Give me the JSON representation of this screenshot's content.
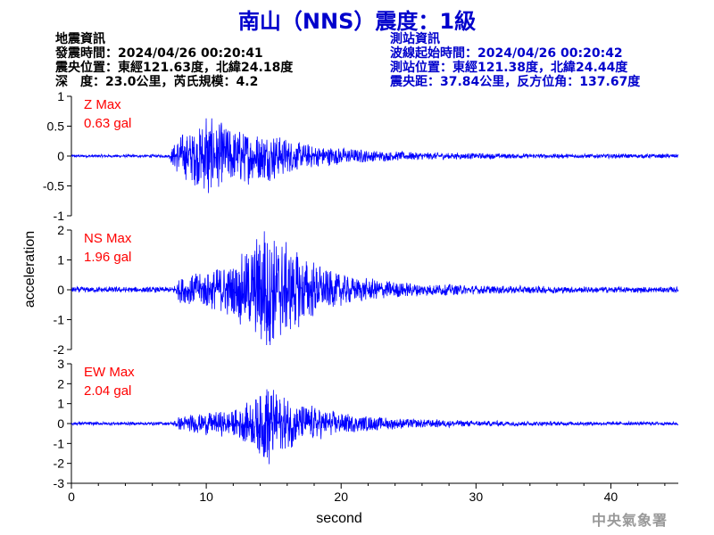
{
  "header": {
    "title": "南山（NNS）震度：1級"
  },
  "event_info": {
    "heading": "地震資訊",
    "origin_time": "發震時間：2024/04/26 00:20:41",
    "epicenter": "震央位置：東經121.63度，北緯24.18度",
    "depth_magnitude": "深　度：23.0公里，芮氏規模：4.2"
  },
  "station_info": {
    "heading": "測站資訊",
    "wave_start": "波線起始時間：2024/04/26 00:20:42",
    "location": "測站位置：東經121.38度，北緯24.44度",
    "distance_azimuth": "震央距：37.84公里，反方位角：137.67度"
  },
  "footer": {
    "agency": "中央氣象署"
  },
  "colors": {
    "trace": "#0000ff",
    "title": "#0000cc",
    "max_label": "#ff0000"
  },
  "chart_data": {
    "type": "line",
    "xlabel": "second",
    "ylabel": "acceleration",
    "x_range": [
      0,
      45
    ],
    "x_ticks": [
      0,
      10,
      20,
      30,
      40
    ],
    "grid": false,
    "panels": [
      {
        "name": "Z",
        "max_label": "Z Max",
        "max_value": "0.63 gal",
        "ylim": [
          -1,
          1
        ],
        "y_ticks": [
          -1,
          -0.5,
          0,
          0.5,
          1
        ],
        "y_tick_labels": [
          "-1",
          "-0.5",
          "0",
          "0.5",
          "1"
        ],
        "peak_pos": 0.63,
        "peak_neg": -0.62,
        "noise": 0.018,
        "envelope": [
          [
            0,
            0.02
          ],
          [
            7.2,
            0.02
          ],
          [
            7.8,
            0.25
          ],
          [
            9.5,
            0.45
          ],
          [
            10,
            0.55
          ],
          [
            12,
            0.4
          ],
          [
            15,
            0.32
          ],
          [
            17,
            0.18
          ],
          [
            20,
            0.12
          ],
          [
            23,
            0.07
          ],
          [
            28,
            0.045
          ],
          [
            35,
            0.03
          ],
          [
            45,
            0.03
          ]
        ]
      },
      {
        "name": "NS",
        "max_label": "NS Max",
        "max_value": "1.96 gal",
        "ylim": [
          -2,
          2
        ],
        "y_ticks": [
          -2,
          -1,
          0,
          1,
          2
        ],
        "y_tick_labels": [
          "-2",
          "-1",
          "0",
          "1",
          "2"
        ],
        "peak_pos": 1.96,
        "peak_neg": -1.85,
        "noise": 0.06,
        "envelope": [
          [
            0,
            0.08
          ],
          [
            7.5,
            0.08
          ],
          [
            8,
            0.35
          ],
          [
            10,
            0.55
          ],
          [
            12,
            0.75
          ],
          [
            13.5,
            1.3
          ],
          [
            14.3,
            1.9
          ],
          [
            15.5,
            1.4
          ],
          [
            17.5,
            0.9
          ],
          [
            19,
            0.55
          ],
          [
            21,
            0.35
          ],
          [
            25,
            0.2
          ],
          [
            30,
            0.12
          ],
          [
            38,
            0.09
          ],
          [
            45,
            0.08
          ]
        ]
      },
      {
        "name": "EW",
        "max_label": "EW Max",
        "max_value": "2.04 gal",
        "ylim": [
          -3,
          3
        ],
        "y_ticks": [
          -3,
          -2,
          -1,
          0,
          1,
          2,
          3
        ],
        "y_tick_labels": [
          "-3",
          "-2",
          "-1",
          "0",
          "1",
          "2",
          "3"
        ],
        "peak_pos": 1.72,
        "peak_neg": -2.04,
        "noise": 0.06,
        "envelope": [
          [
            0,
            0.07
          ],
          [
            7.5,
            0.07
          ],
          [
            8,
            0.3
          ],
          [
            10,
            0.45
          ],
          [
            12,
            0.55
          ],
          [
            13.5,
            1.0
          ],
          [
            14.5,
            1.7
          ],
          [
            15.5,
            1.2
          ],
          [
            17,
            0.85
          ],
          [
            19,
            0.55
          ],
          [
            21,
            0.35
          ],
          [
            25,
            0.2
          ],
          [
            30,
            0.12
          ],
          [
            38,
            0.08
          ],
          [
            45,
            0.07
          ]
        ]
      }
    ]
  }
}
